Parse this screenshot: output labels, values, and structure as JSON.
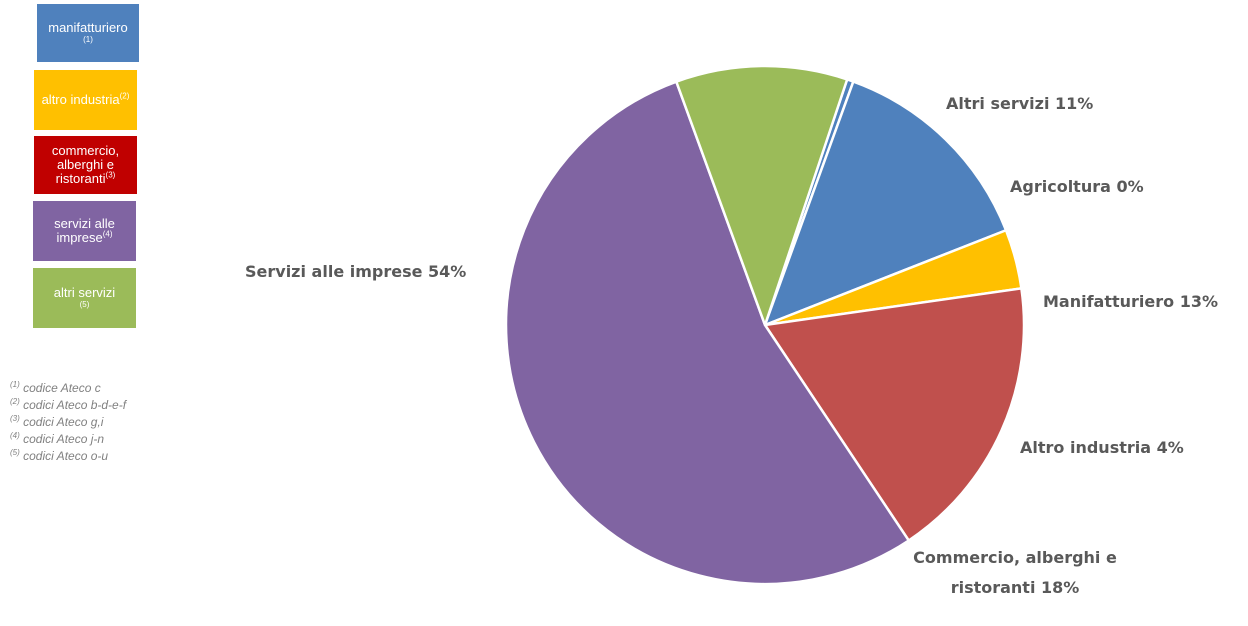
{
  "legend": [
    {
      "text": "manifatturiero",
      "note": "(1)",
      "color": "#4F81BD"
    },
    {
      "text": "altro industria",
      "note": "(2)",
      "color": "#FFC000"
    },
    {
      "text": "commercio, alberghi e ristoranti",
      "note": "(3)",
      "color": "#C00000"
    },
    {
      "text": "servizi alle imprese",
      "note": "(4)",
      "color": "#8064A2"
    },
    {
      "text": "altri servizi",
      "note": "(5)",
      "color": "#9BBB59"
    }
  ],
  "footnotes": [
    {
      "mark": "(1)",
      "text": " codice Ateco c"
    },
    {
      "mark": "(2)",
      "text": " codici Ateco b-d-e-f"
    },
    {
      "mark": "(3)",
      "text": " codici Ateco g,i"
    },
    {
      "mark": "(4)",
      "text": " codici Ateco j-n"
    },
    {
      "mark": "(5)",
      "text": " codici Ateco o-u"
    }
  ],
  "chart_data": {
    "type": "pie",
    "start_angle_deg": 18.5,
    "direction": "clockwise",
    "slices": [
      {
        "label": "Agricoltura",
        "pct": "0%",
        "value": 0.4,
        "color": "#4F81BD"
      },
      {
        "label": "Manifatturiero",
        "pct": "13%",
        "value": 13.5,
        "color": "#4F81BD"
      },
      {
        "label": "Altro industria",
        "pct": "4%",
        "value": 3.7,
        "color": "#FFC000"
      },
      {
        "label": "Commercio, alberghi e ristoranti",
        "pct": "18%",
        "value": 17.9,
        "color": "#C0504D"
      },
      {
        "label": "Servizi alle imprese",
        "pct": "54%",
        "value": 53.8,
        "color": "#8064A2"
      },
      {
        "label": "Altri servizi",
        "pct": "11%",
        "value": 10.7,
        "color": "#9BBB59"
      }
    ]
  }
}
